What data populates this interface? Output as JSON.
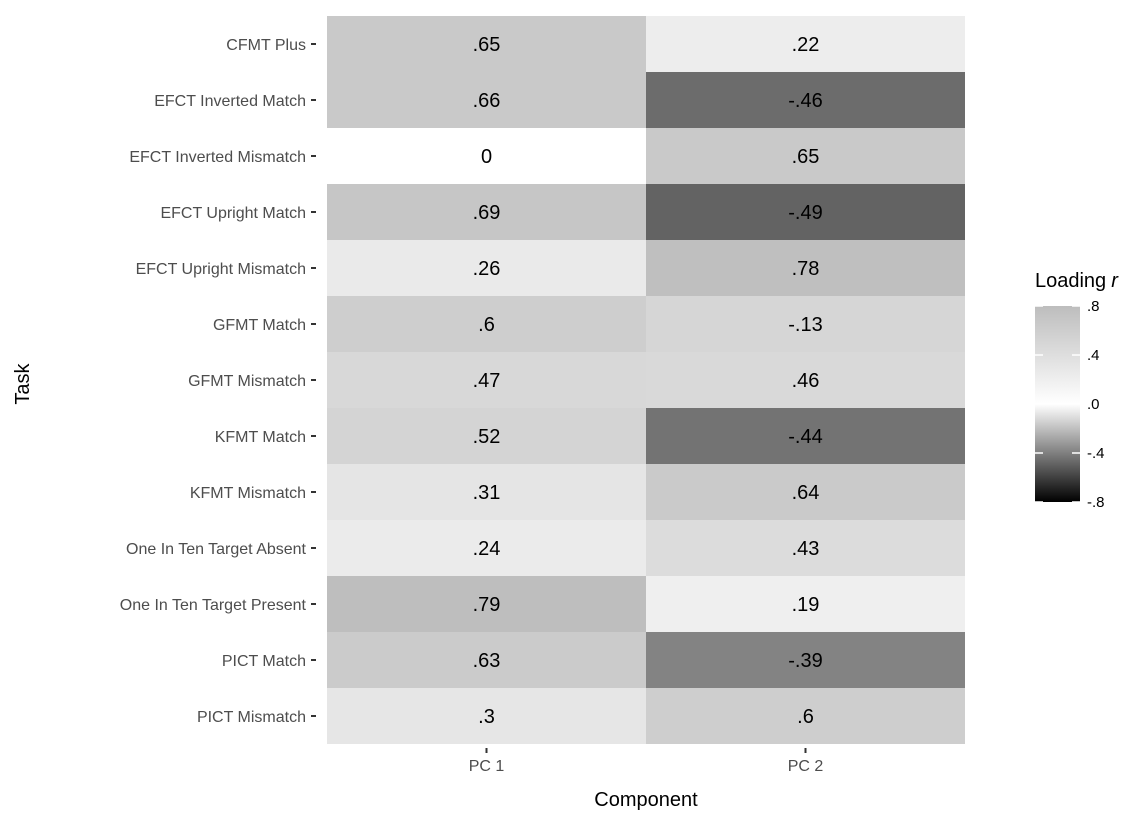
{
  "chart_data": {
    "type": "heatmap",
    "xlabel": "Component",
    "ylabel": "Task",
    "columns": [
      "PC 1",
      "PC 2"
    ],
    "rows": [
      "CFMT Plus",
      "EFCT Inverted Match",
      "EFCT Inverted Mismatch",
      "EFCT Upright Match",
      "EFCT Upright Mismatch",
      "GFMT Match",
      "GFMT Mismatch",
      "KFMT Match",
      "KFMT Mismatch",
      "One In Ten Target Absent",
      "One In Ten Target Present",
      "PICT Match",
      "PICT Mismatch"
    ],
    "values": [
      [
        0.65,
        0.22
      ],
      [
        0.66,
        -0.46
      ],
      [
        0,
        0.65
      ],
      [
        0.69,
        -0.49
      ],
      [
        0.26,
        0.78
      ],
      [
        0.6,
        -0.13
      ],
      [
        0.47,
        0.46
      ],
      [
        0.52,
        -0.44
      ],
      [
        0.31,
        0.64
      ],
      [
        0.24,
        0.43
      ],
      [
        0.79,
        0.19
      ],
      [
        0.63,
        -0.39
      ],
      [
        0.3,
        0.6
      ]
    ],
    "cell_labels": [
      [
        ".65",
        ".22"
      ],
      [
        ".66",
        "-.46"
      ],
      [
        "0",
        ".65"
      ],
      [
        ".69",
        "-.49"
      ],
      [
        ".26",
        ".78"
      ],
      [
        ".6",
        "-.13"
      ],
      [
        ".47",
        ".46"
      ],
      [
        ".52",
        "-.44"
      ],
      [
        ".31",
        ".64"
      ],
      [
        ".24",
        ".43"
      ],
      [
        ".79",
        ".19"
      ],
      [
        ".63",
        "-.39"
      ],
      [
        ".3",
        ".6"
      ]
    ],
    "legend": {
      "title": "Loading",
      "title_italic": "r",
      "ticks": [
        0.8,
        0.4,
        0.0,
        -0.4,
        -0.8
      ],
      "tick_labels": [
        ".8",
        ".4",
        ".0",
        "-.4",
        "-.8"
      ],
      "placement": "right"
    },
    "scale": {
      "min": -0.8,
      "max": 0.8
    }
  }
}
